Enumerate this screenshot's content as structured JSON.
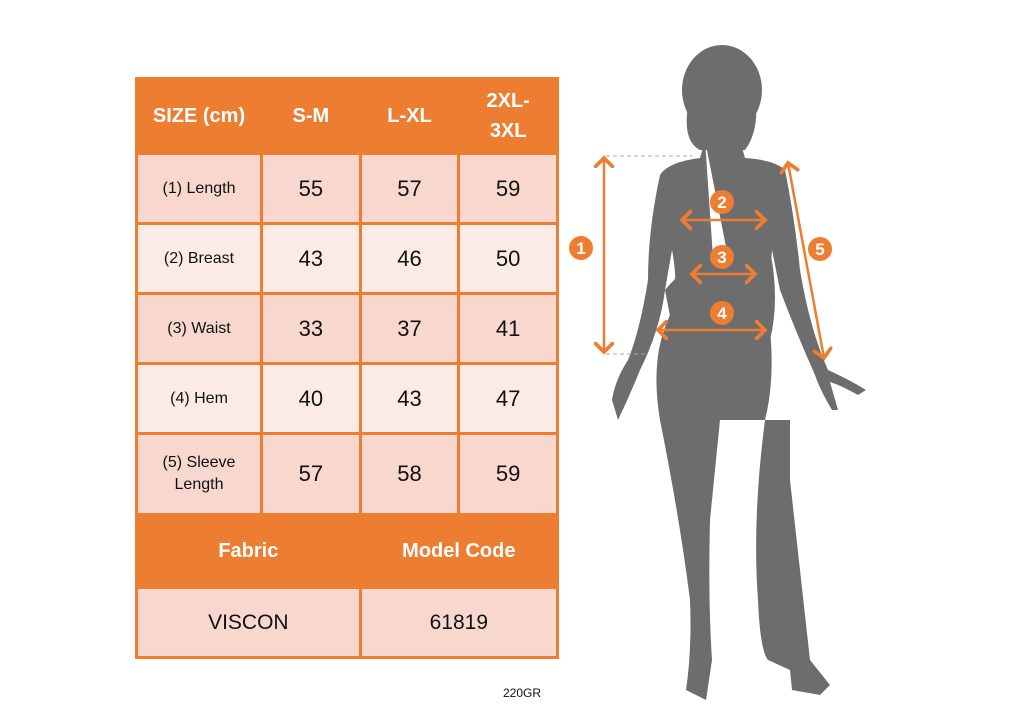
{
  "table": {
    "headers": [
      "SIZE (cm)",
      "S-M",
      "L-XL",
      "2XL-3XL"
    ],
    "rows": [
      {
        "label": "(1) Length",
        "values": [
          "55",
          "57",
          "59"
        ]
      },
      {
        "label": "(2) Breast",
        "values": [
          "43",
          "46",
          "50"
        ]
      },
      {
        "label": "(3) Waist",
        "values": [
          "33",
          "37",
          "41"
        ]
      },
      {
        "label": "(4) Hem",
        "values": [
          "40",
          "43",
          "47"
        ]
      },
      {
        "label": "(5) Sleeve Length",
        "values": [
          "57",
          "58",
          "59"
        ]
      }
    ],
    "footer_headers": [
      "Fabric",
      "Model Code"
    ],
    "footer_values": [
      "VISCON",
      "61819"
    ]
  },
  "code_label": "220GR",
  "markers": [
    "1",
    "2",
    "3",
    "4",
    "5"
  ],
  "colors": {
    "accent": "#ed7d31",
    "row_dark": "#f8d8ce",
    "row_light": "#fbebe6",
    "silhouette": "#6d6d6d"
  }
}
